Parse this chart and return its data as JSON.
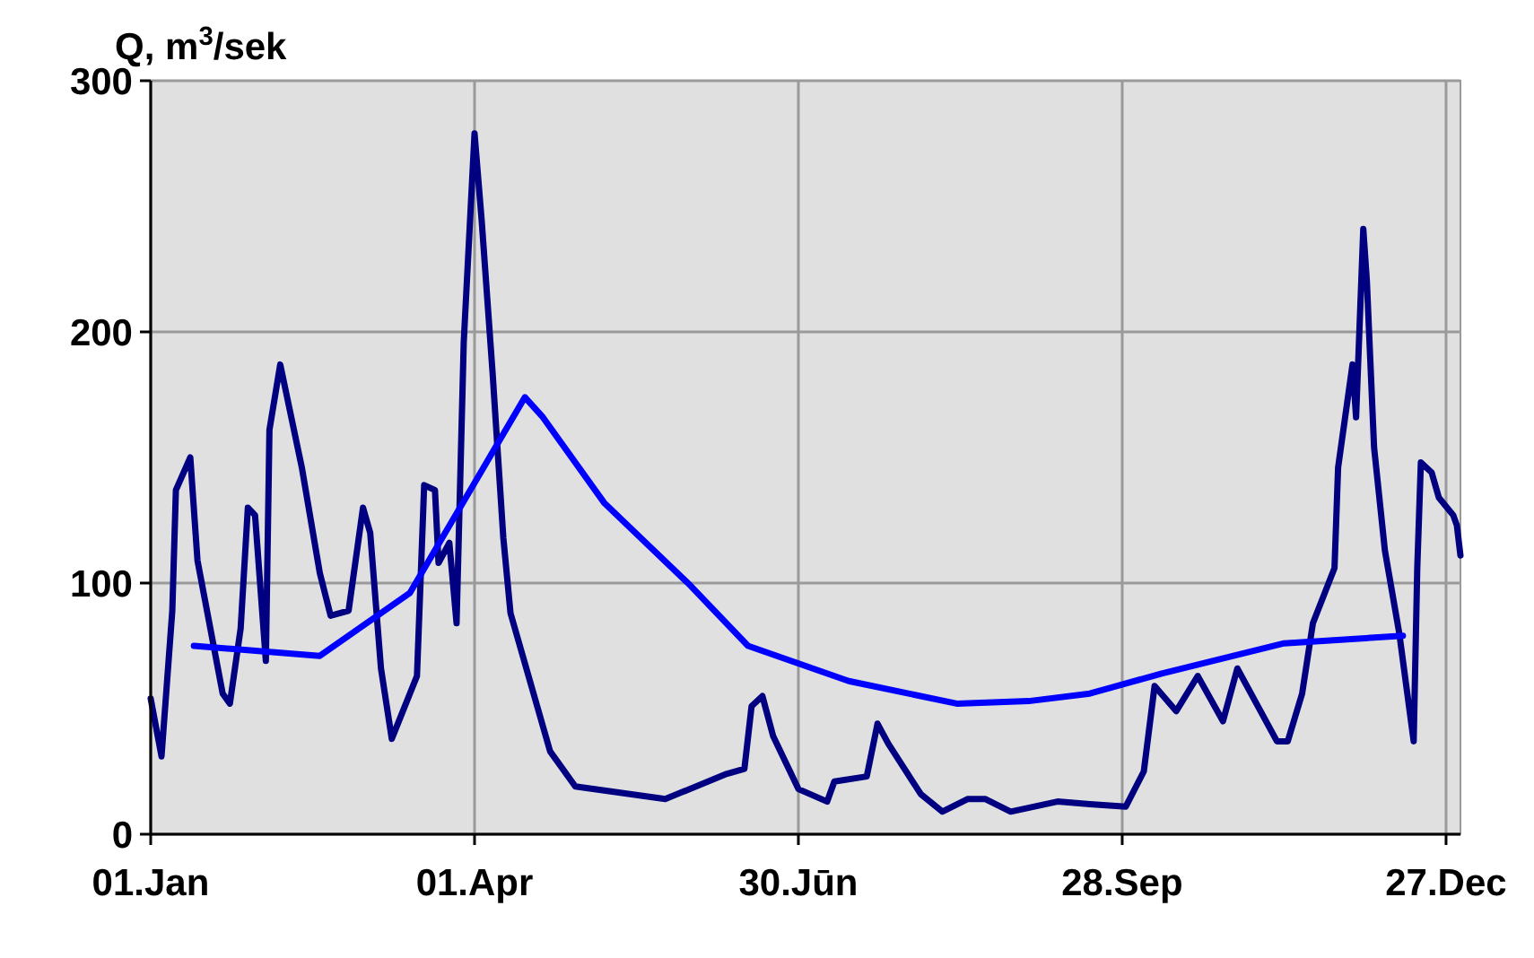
{
  "chart_data": {
    "type": "line",
    "ylabel": "Q, m$^{3}$/sek",
    "xlim": [
      "--01-01",
      "--12-31"
    ],
    "xticks": [
      {
        "value": "--01-01",
        "label": "01.Jan"
      },
      {
        "value": "--04-01",
        "label": "01.Apr"
      },
      {
        "value": "--06-30",
        "label": "30.Jūn"
      },
      {
        "value": "--09-28",
        "label": "28.Sep"
      },
      {
        "value": "--12-27",
        "label": "27.Dec"
      }
    ],
    "ylim": [
      0,
      300
    ],
    "yticks": [
      0,
      100,
      200,
      300
    ],
    "grid": true,
    "line_style": "solid",
    "series": [
      {
        "color": "#000080",
        "x": [
          "--01-01",
          "--01-04",
          "--01-07",
          "--01-08",
          "--01-12",
          "--01-14",
          "--01-21",
          "--01-23",
          "--01-26",
          "--01-28",
          "--01-30",
          "--02-02",
          "--02-03",
          "--02-06",
          "--02-12",
          "--02-17",
          "--02-20",
          "--02-25",
          "--03-01",
          "--03-03",
          "--03-06",
          "--03-09",
          "--03-16",
          "--03-18",
          "--03-21",
          "--03-22",
          "--03-25",
          "--03-27",
          "--03-29",
          "--04-01",
          "--04-03",
          "--04-06",
          "--04-09",
          "--04-11",
          "--04-17",
          "--04-22",
          "--04-29",
          "--05-24",
          "--06-10",
          "--06-15",
          "--06-17",
          "--06-20",
          "--06-23",
          "--06-30",
          "--07-08",
          "--07-10",
          "--07-19",
          "--07-22",
          "--07-25",
          "--08-03",
          "--08-09",
          "--08-16",
          "--08-21",
          "--08-28",
          "--09-10",
          "--09-19",
          "--09-29",
          "--10-04",
          "--10-07",
          "--10-13",
          "--10-19",
          "--10-26",
          "--10-30",
          "--11-10",
          "--11-13",
          "--11-17",
          "--11-20",
          "--11-26",
          "--11-27",
          "--12-01",
          "--12-02",
          "--12-04",
          "--12-05",
          "--12-07",
          "--12-10",
          "--12-14",
          "--12-18",
          "--12-19",
          "--12-20",
          "--12-23",
          "--12-25",
          "--12-29",
          "--12-30",
          "--12-31"
        ],
        "values": [
          54,
          31,
          89,
          137,
          150,
          109,
          56,
          52,
          82,
          130,
          127,
          69,
          161,
          187,
          146,
          104,
          87,
          89,
          130,
          120,
          66,
          38,
          63,
          139,
          137,
          108,
          116,
          84,
          196,
          279,
          244,
          184,
          118,
          88,
          58,
          33,
          19,
          14,
          24,
          26,
          51,
          55,
          39,
          18,
          13,
          21,
          23,
          44,
          36,
          16,
          9,
          14,
          14,
          9,
          13,
          12,
          11,
          25,
          59,
          49,
          63,
          45,
          66,
          37,
          37,
          56,
          84,
          106,
          146,
          187,
          166,
          241,
          220,
          154,
          113,
          80,
          37,
          106,
          148,
          144,
          134,
          127,
          123,
          111
        ]
      },
      {
        "color": "#0000ff",
        "x": [
          "--01-13",
          "--02-17",
          "--03-14",
          "--04-15",
          "--04-20",
          "--05-07",
          "--05-31",
          "--06-16",
          "--07-14",
          "--08-13",
          "--09-02",
          "--09-19",
          "--10-09",
          "--11-12",
          "--12-15"
        ],
        "values": [
          75,
          71,
          96,
          174,
          166,
          132,
          99,
          75,
          61,
          52,
          53,
          56,
          64,
          76,
          79
        ]
      }
    ]
  }
}
